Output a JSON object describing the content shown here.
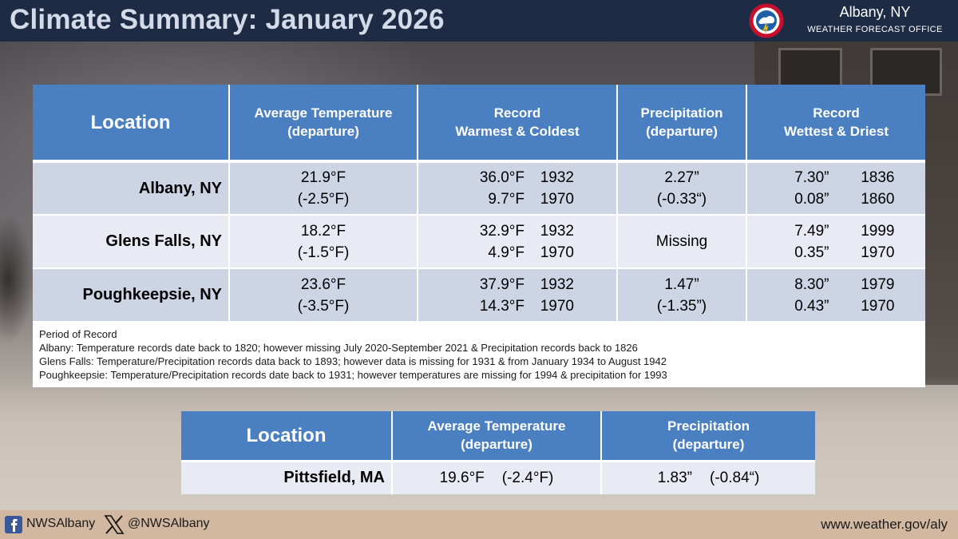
{
  "header": {
    "title": "Climate Summary: January 2026",
    "office_name": "Albany, NY",
    "office_sub": "WEATHER FORECAST OFFICE"
  },
  "main_table": {
    "headers": {
      "location": "Location",
      "avg_temp": [
        "Average Temperature",
        "(departure)"
      ],
      "record_temp": [
        "Record",
        "Warmest & Coldest"
      ],
      "precip": [
        "Precipitation",
        "(departure)"
      ],
      "record_precip": [
        "Record",
        "Wettest & Driest"
      ]
    },
    "rows": [
      {
        "city": "Albany, NY",
        "avg_temp": "21.9°F",
        "avg_dep": "(-2.5°F)",
        "warm_val": "36.0°F",
        "warm_year": "1932",
        "cold_val": "9.7°F",
        "cold_year": "1970",
        "precip": "2.27”",
        "precip_dep": "(-0.33“)",
        "wet_val": "7.30”",
        "wet_year": "1836",
        "dry_val": "0.08”",
        "dry_year": "1860"
      },
      {
        "city": "Glens Falls, NY",
        "avg_temp": "18.2°F",
        "avg_dep": "(-1.5°F)",
        "warm_val": "32.9°F",
        "warm_year": "1932",
        "cold_val": "4.9°F",
        "cold_year": "1970",
        "precip": "Missing",
        "wet_val": "7.49”",
        "wet_year": "1999",
        "dry_val": "0.35”",
        "dry_year": "1970"
      },
      {
        "city": "Poughkeepsie, NY",
        "avg_temp": "23.6°F",
        "avg_dep": "(-3.5°F)",
        "warm_val": "37.9°F",
        "warm_year": "1932",
        "cold_val": "14.3°F",
        "cold_year": "1970",
        "precip": "1.47”",
        "precip_dep": "(-1.35”)",
        "wet_val": "8.30”",
        "wet_year": "1979",
        "dry_val": "0.43”",
        "dry_year": "1970"
      }
    ],
    "notes": [
      "Period of Record",
      "Albany: Temperature records date back to 1820; however missing July 2020-September 2021 & Precipitation records back to 1826",
      "Glens Falls: Temperature/Precipitation records data back to 1893; however data is missing for 1931 & from January 1934 to August 1942",
      "Poughkeepsie: Temperature/Precipitation records date back to 1931; however temperatures are missing for 1994 & precipitation for 1993"
    ]
  },
  "second_table": {
    "headers": {
      "location": "Location",
      "avg_temp": [
        "Average Temperature",
        "(departure)"
      ],
      "precip": [
        "Precipitation",
        "(departure)"
      ]
    },
    "row": {
      "city": "Pittsfield, MA",
      "avg_temp": "19.6°F",
      "avg_dep": "(-2.4°F)",
      "precip": "1.83”",
      "precip_dep": "(-0.84“)"
    }
  },
  "footer": {
    "facebook": "NWSAlbany",
    "x_handle": "@NWSAlbany",
    "website": "www.weather.gov/aly"
  },
  "colors": {
    "header_bg": "#1e2b45",
    "table_header": "#4a7fc1",
    "row_dark": "#cdd4e3",
    "row_light": "#e8ebf3",
    "footer_bg": "#d3b8a1"
  },
  "icons": [
    "nws-logo-icon",
    "facebook-icon",
    "x-logo-icon"
  ]
}
